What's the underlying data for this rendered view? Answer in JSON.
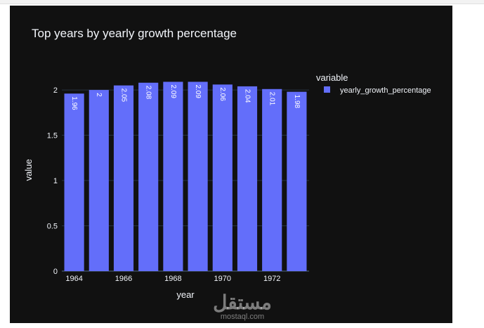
{
  "chart_data": {
    "type": "bar",
    "title": "Top years by yearly growth percentage",
    "xlabel": "year",
    "ylabel": "value",
    "x": [
      1964,
      1965,
      1966,
      1967,
      1968,
      1969,
      1970,
      1971,
      1972,
      1973
    ],
    "x_tick_labels": [
      "1964",
      "1966",
      "1968",
      "1970",
      "1972"
    ],
    "x_tick_values": [
      1964,
      1966,
      1968,
      1970,
      1972
    ],
    "y_tick_labels": [
      "0",
      "0.5",
      "1",
      "1.5",
      "2"
    ],
    "y_tick_values": [
      0,
      0.5,
      1,
      1.5,
      2
    ],
    "ylim": [
      0,
      2.21
    ],
    "grid": true,
    "series": [
      {
        "name": "yearly_growth_percentage",
        "color": "#636efa",
        "values": [
          1.96,
          2,
          2.05,
          2.08,
          2.09,
          2.09,
          2.06,
          2.04,
          2.01,
          1.98
        ],
        "labels": [
          "1.96",
          "2",
          "2.05",
          "2.08",
          "2.09",
          "2.09",
          "2.06",
          "2.04",
          "2.01",
          "1.98"
        ]
      }
    ],
    "legend": {
      "title": "variable",
      "placement": "top-right"
    }
  },
  "watermark": {
    "arabic": "مستقل",
    "latin": "mostaql.com"
  }
}
